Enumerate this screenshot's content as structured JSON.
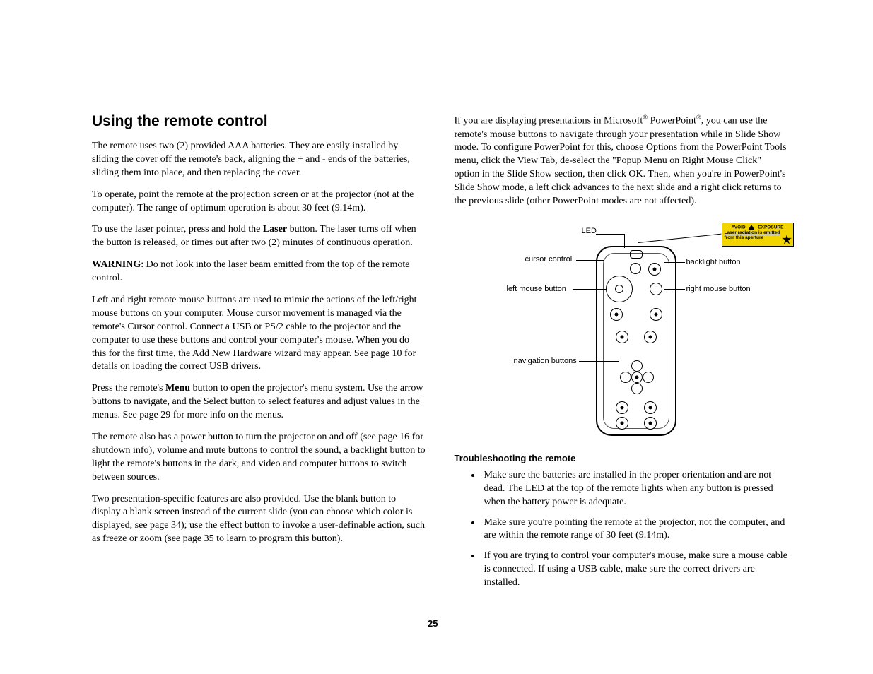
{
  "page_number": "25",
  "heading": "Using the remote control",
  "left_paragraphs": [
    "The remote uses two (2) provided AAA batteries. They are easily installed by sliding the cover off the remote's back, aligning the + and - ends of the batteries, sliding them into place, and then replacing the cover.",
    "To operate, point the remote at the projection screen or at the projector (not at the computer). The range of optimum operation is about 30 feet (9.14m).",
    "To use the laser pointer, press and hold the |b|Laser|/b| button. The laser turns off when the button is released, or times out after two (2) minutes of continuous operation.",
    "|b|WARNING|/b|: Do not look into the laser beam emitted from the top of the remote control.",
    "Left and right remote mouse buttons are used to mimic the actions of the left/right mouse buttons on your computer. Mouse cursor movement is managed via the remote's Cursor control. Connect a USB or PS/2 cable to the projector and the computer to use these buttons and control your computer's mouse. When you do this for the first time, the Add New Hardware wizard may appear. See page 10 for details on loading the correct USB drivers.",
    "Press the remote's |b|Menu|/b| button to open the projector's menu system. Use the arrow buttons to navigate, and the Select button to select features and adjust values in the menus. See page 29 for more info on the menus.",
    "The remote also has a power button to turn the projector on and off (see page 16 for shutdown info), volume and mute buttons to control the sound, a backlight button to light the remote's buttons in the dark, and video and computer buttons to switch between sources.",
    "Two presentation-specific features are also provided. Use the blank button to display a blank screen instead of the current slide (you can choose which color is displayed, see page 34); use the effect button to invoke a user-definable action, such as freeze or zoom (see page 35 to learn to program this button)."
  ],
  "right_intro": "If you are displaying presentations in Microsoft|sup|®|/sup| PowerPoint|sup|®|/sup|, you can use the remote's mouse buttons to navigate through your presentation while in Slide Show mode. To configure PowerPoint for this, choose Options from the PowerPoint Tools menu, click the View Tab, de-select the \"Popup Menu on Right Mouse Click\" option in the Slide Show section, then click OK. Then, when you're in PowerPoint's Slide Show mode, a left click advances to the next slide and a right click returns to the previous slide (other PowerPoint modes are not affected).",
  "diagram_labels": {
    "led": "LED",
    "cursor": "cursor control",
    "left_mouse": "left mouse button",
    "nav": "navigation buttons",
    "backlight": "backlight button",
    "right_mouse": "right mouse button"
  },
  "warning_box": {
    "line1_left": "AVOID",
    "line1_right": "EXPOSURE",
    "line2": "Laser radiation is emitted",
    "line3": "from this aperture"
  },
  "troubleshoot_head": "Troubleshooting the remote",
  "troubleshoot_items": [
    "Make sure the batteries are installed in the proper orientation and are not dead. The LED at the top of the remote lights when any button is pressed when the battery power is adequate.",
    "Make sure you're pointing the remote at the projector, not the computer, and are within the remote range of 30 feet (9.14m).",
    "If you are trying to control your computer's mouse, make sure a mouse cable is connected. If using a USB cable, make sure the correct drivers are installed."
  ],
  "colors": {
    "warning_bg": "#f2d500",
    "text": "#000000",
    "background": "#ffffff"
  }
}
